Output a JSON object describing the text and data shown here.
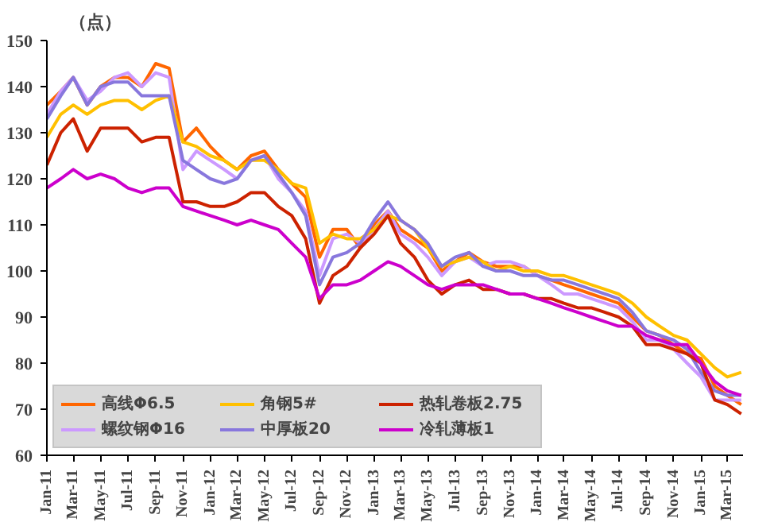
{
  "chart_data": {
    "type": "line",
    "ylabel": "（点）",
    "x": [
      "2011-01",
      "2011-02",
      "2011-03",
      "2011-04",
      "2011-05",
      "2011-06",
      "2011-07",
      "2011-08",
      "2011-09",
      "2011-10",
      "2011-11",
      "2011-12",
      "2012-01",
      "2012-02",
      "2012-03",
      "2012-04",
      "2012-05",
      "2012-06",
      "2012-07",
      "2012-08",
      "2012-09",
      "2012-10",
      "2012-11",
      "2012-12",
      "2013-01",
      "2013-02",
      "2013-03",
      "2013-04",
      "2013-05",
      "2013-06",
      "2013-07",
      "2013-08",
      "2013-09",
      "2013-10",
      "2013-11",
      "2013-12",
      "2014-01",
      "2014-02",
      "2014-03",
      "2014-04",
      "2014-05",
      "2014-06",
      "2014-07",
      "2014-08",
      "2014-09",
      "2014-10",
      "2014-11",
      "2014-12",
      "2015-01",
      "2015-02",
      "2015-03",
      "2015-04"
    ],
    "xlim": [
      "2011-01",
      "2015-04-05"
    ],
    "xticks": [
      {
        "value": "2011-01",
        "label": "Jan-11"
      },
      {
        "value": "2011-03",
        "label": "Mar-11"
      },
      {
        "value": "2011-05",
        "label": "May-11"
      },
      {
        "value": "2011-07",
        "label": "Jul-11"
      },
      {
        "value": "2011-09",
        "label": "Sep-11"
      },
      {
        "value": "2011-11",
        "label": "Nov-11"
      },
      {
        "value": "2012-01",
        "label": "Jan-12"
      },
      {
        "value": "2012-03",
        "label": "Mar-12"
      },
      {
        "value": "2012-05",
        "label": "May-12"
      },
      {
        "value": "2012-07",
        "label": "Jul-12"
      },
      {
        "value": "2012-09",
        "label": "Sep-12"
      },
      {
        "value": "2012-11",
        "label": "Nov-12"
      },
      {
        "value": "2013-01",
        "label": "Jan-13"
      },
      {
        "value": "2013-03",
        "label": "Mar-13"
      },
      {
        "value": "2013-05",
        "label": "May-13"
      },
      {
        "value": "2013-07",
        "label": "Jul-13"
      },
      {
        "value": "2013-09",
        "label": "Sep-13"
      },
      {
        "value": "2013-11",
        "label": "Nov-13"
      },
      {
        "value": "2014-01",
        "label": "Jan-14"
      },
      {
        "value": "2014-03",
        "label": "Mar-14"
      },
      {
        "value": "2014-05",
        "label": "May-14"
      },
      {
        "value": "2014-07",
        "label": "Jul-14"
      },
      {
        "value": "2014-09",
        "label": "Sep-14"
      },
      {
        "value": "2014-11",
        "label": "Nov-14"
      },
      {
        "value": "2015-01",
        "label": "Jan-15"
      },
      {
        "value": "2015-03",
        "label": "Mar-15"
      }
    ],
    "ylim": [
      60,
      150
    ],
    "yticks": [
      60,
      70,
      80,
      90,
      100,
      110,
      120,
      130,
      140,
      150
    ],
    "grid": false,
    "legend": "bottom left",
    "line_style": "solid",
    "marker": "none",
    "series": [
      {
        "name": "高线Φ6.5",
        "color": "#ff6600",
        "values": [
          136,
          139,
          142,
          136,
          140,
          142,
          142,
          140,
          145,
          144,
          128,
          131,
          127,
          124,
          122,
          125,
          126,
          122,
          119,
          116,
          103,
          109,
          109,
          105,
          110,
          113,
          109,
          107,
          105,
          100,
          102,
          104,
          102,
          101,
          101,
          101,
          99,
          98,
          97,
          96,
          95,
          94,
          93,
          90,
          87,
          86,
          84,
          82,
          81,
          75,
          73,
          71
        ]
      },
      {
        "name": "螺纹钢Φ16",
        "color": "#cc99ff",
        "values": [
          134,
          139,
          142,
          137,
          139,
          142,
          143,
          140,
          143,
          142,
          122,
          126,
          124,
          122,
          120,
          124,
          125,
          120,
          117,
          113,
          99,
          107,
          108,
          106,
          109,
          113,
          108,
          106,
          103,
          99,
          102,
          103,
          101,
          102,
          102,
          101,
          99,
          97,
          95,
          95,
          94,
          93,
          92,
          89,
          85,
          85,
          83,
          80,
          77,
          72,
          72,
          72
        ]
      },
      {
        "name": "角钢5#",
        "color": "#ffc000",
        "values": [
          129,
          134,
          136,
          134,
          136,
          137,
          137,
          135,
          137,
          138,
          128,
          127,
          125,
          124,
          122,
          124,
          124,
          122,
          119,
          118,
          106,
          108,
          107,
          107,
          109,
          112,
          111,
          109,
          105,
          101,
          102,
          103,
          102,
          100,
          101,
          100,
          100,
          99,
          99,
          98,
          97,
          96,
          95,
          93,
          90,
          88,
          86,
          85,
          82,
          79,
          77,
          78
        ]
      },
      {
        "name": "中厚板20",
        "color": "#8877dd",
        "values": [
          133,
          138,
          142,
          136,
          140,
          141,
          141,
          138,
          138,
          138,
          124,
          122,
          120,
          119,
          120,
          124,
          125,
          121,
          117,
          112,
          97,
          103,
          104,
          106,
          111,
          115,
          111,
          109,
          106,
          101,
          103,
          104,
          101,
          100,
          100,
          99,
          99,
          98,
          98,
          97,
          96,
          95,
          94,
          91,
          87,
          86,
          85,
          83,
          78,
          74,
          73,
          73
        ]
      },
      {
        "name": "热轧卷板2.75",
        "color": "#cc2200",
        "values": [
          123,
          130,
          133,
          126,
          131,
          131,
          131,
          128,
          129,
          129,
          115,
          115,
          114,
          114,
          115,
          117,
          117,
          114,
          112,
          107,
          93,
          99,
          101,
          105,
          108,
          112,
          106,
          103,
          98,
          95,
          97,
          98,
          96,
          96,
          95,
          95,
          94,
          94,
          93,
          92,
          92,
          91,
          90,
          88,
          84,
          84,
          83,
          82,
          80,
          72,
          71,
          69
        ]
      },
      {
        "name": "冷轧薄板1",
        "color": "#cc00cc",
        "values": [
          118,
          120,
          122,
          120,
          121,
          120,
          118,
          117,
          118,
          118,
          114,
          113,
          112,
          111,
          110,
          111,
          110,
          109,
          106,
          103,
          94,
          97,
          97,
          98,
          100,
          102,
          101,
          99,
          97,
          96,
          97,
          97,
          97,
          96,
          95,
          95,
          94,
          93,
          92,
          91,
          90,
          89,
          88,
          88,
          86,
          85,
          84,
          84,
          80,
          76,
          74,
          73
        ]
      }
    ]
  }
}
